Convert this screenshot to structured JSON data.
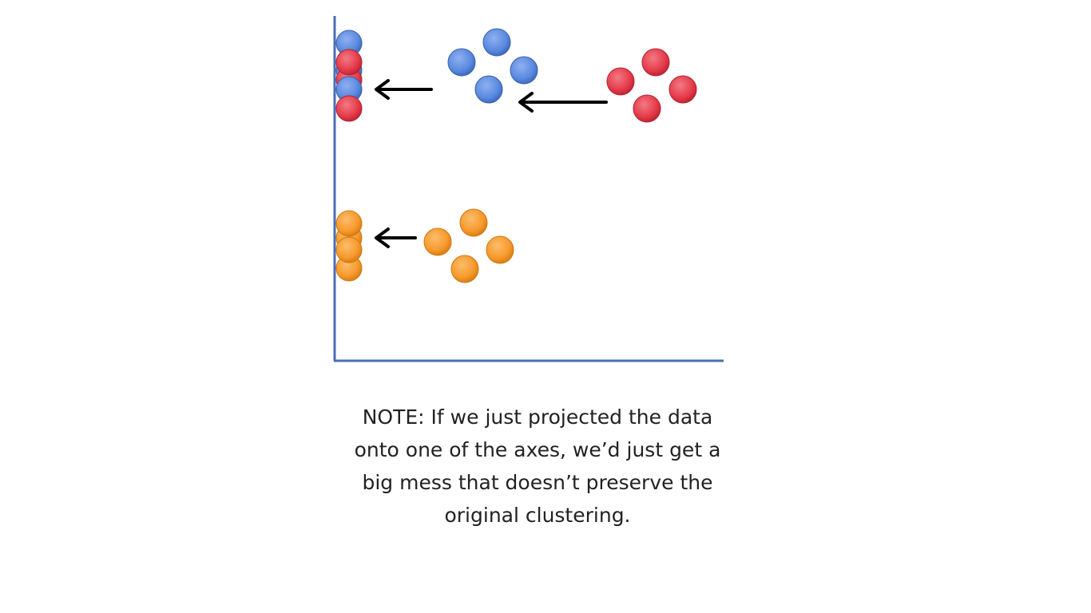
{
  "colors": {
    "axis": "#4a6fb3",
    "arrow": "#000000",
    "blue": "#5b8ae0",
    "red": "#e53c4b",
    "orange": "#f79a2d",
    "text": "#222222"
  },
  "clusters": [
    {
      "name": "blue",
      "color": "blue"
    },
    {
      "name": "red",
      "color": "red"
    },
    {
      "name": "orange",
      "color": "orange"
    }
  ],
  "note": {
    "text": "NOTE: If we just projected the data\nonto one of the axes, we’d just get a\nbig mess that doesn’t preserve the\noriginal clustering."
  }
}
